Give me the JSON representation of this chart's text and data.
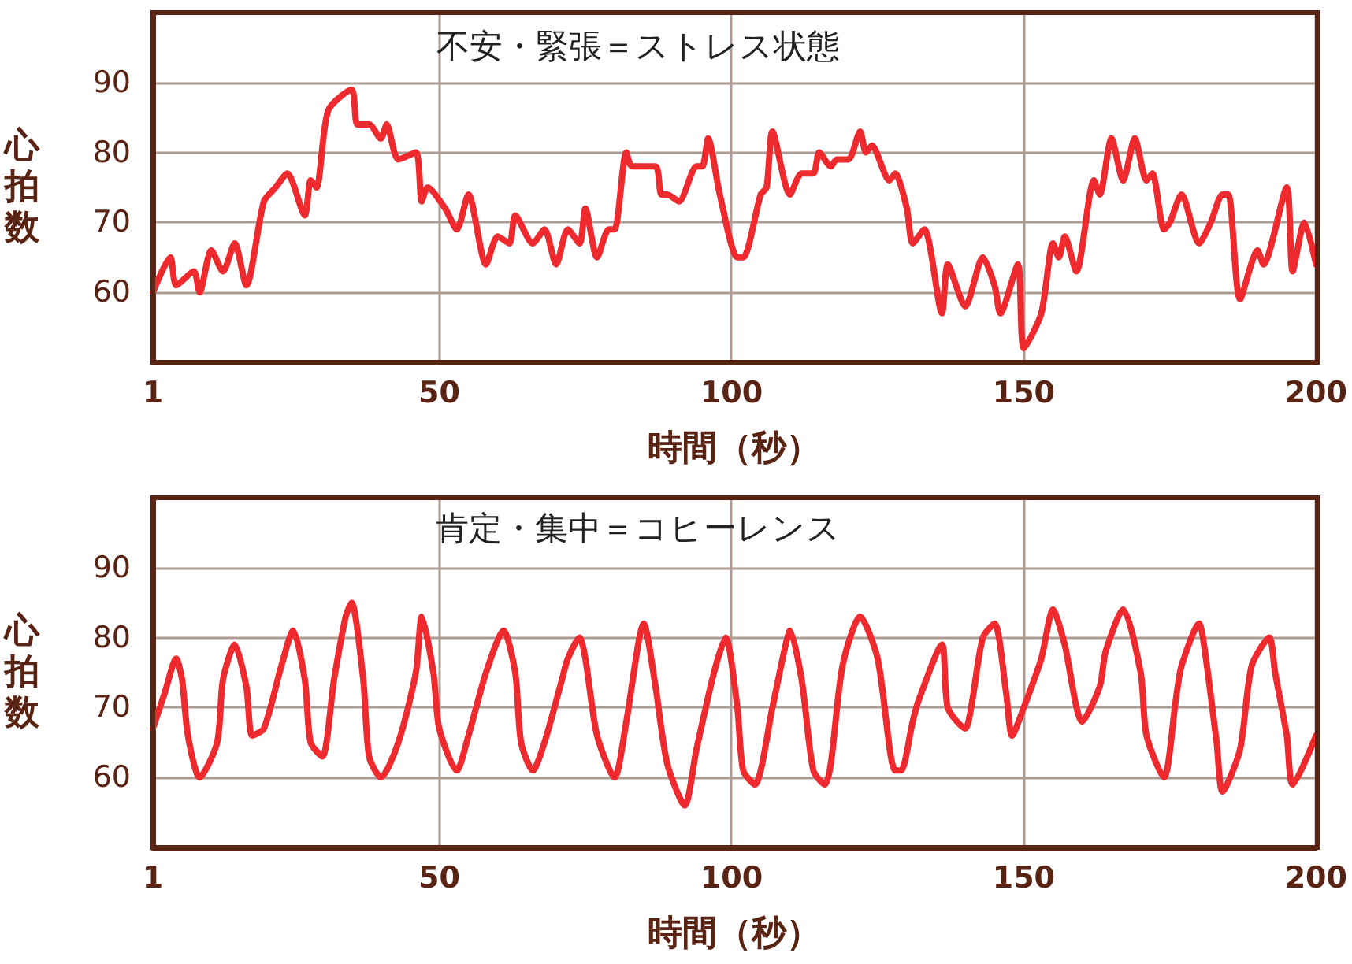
{
  "chart_data": [
    {
      "type": "line",
      "title": "不安・緊張＝ストレス状態",
      "xlabel": "時間（秒）",
      "ylabel": "心拍数",
      "xlim": [
        1,
        200
      ],
      "xticks": [
        1,
        50,
        100,
        150,
        200
      ],
      "ylim": [
        50,
        100
      ],
      "yticks": [
        60,
        70,
        80,
        90
      ],
      "grid": true,
      "x": [
        1,
        4,
        5,
        8,
        9,
        11,
        13,
        15,
        17,
        20,
        22,
        24,
        27,
        28,
        29,
        31,
        35,
        36,
        38,
        40,
        41,
        43,
        46,
        47,
        48,
        51,
        53,
        55,
        58,
        60,
        62,
        63,
        66,
        68,
        70,
        72,
        74,
        75,
        77,
        79,
        80,
        82,
        83,
        87,
        88,
        89,
        91,
        94,
        95,
        96,
        98,
        101,
        102,
        105,
        106,
        107,
        110,
        112,
        114,
        115,
        117,
        118,
        120,
        122,
        123,
        124,
        127,
        128,
        130,
        131,
        133,
        136,
        137,
        140,
        143,
        145,
        146,
        149,
        150,
        153,
        155,
        156,
        157,
        159,
        162,
        163,
        165,
        167,
        169,
        171,
        172,
        174,
        175,
        177,
        180,
        182,
        184,
        185,
        187,
        190,
        191,
        195,
        196,
        198,
        200
      ],
      "series": [
        {
          "color": "#ee2a2e",
          "values": [
            60,
            65,
            61,
            63,
            60,
            66,
            63,
            67,
            61,
            73,
            75,
            77,
            71,
            76,
            75,
            86,
            89,
            84,
            84,
            82,
            84,
            79,
            80,
            73,
            75,
            72,
            69,
            74,
            64,
            68,
            67,
            71,
            67,
            69,
            64,
            69,
            67,
            72,
            65,
            69,
            69,
            80,
            78,
            78,
            74,
            74,
            73,
            78,
            78,
            82,
            74,
            65,
            65,
            74,
            75,
            83,
            74,
            77,
            77,
            80,
            78,
            79,
            79,
            83,
            80,
            81,
            76,
            77,
            72,
            67,
            69,
            57,
            64,
            58,
            65,
            61,
            57,
            64,
            52,
            57,
            67,
            65,
            68,
            63,
            76,
            74,
            82,
            76,
            82,
            76,
            77,
            69,
            70,
            74,
            67,
            70,
            74,
            74,
            59,
            66,
            64,
            75,
            63,
            70,
            64
          ]
        }
      ]
    },
    {
      "type": "line",
      "title": "肯定・集中＝コヒーレンス",
      "xlabel": "時間（秒）",
      "ylabel": "心拍数",
      "xlim": [
        1,
        200
      ],
      "xticks": [
        1,
        50,
        100,
        150,
        200
      ],
      "ylim": [
        50,
        100
      ],
      "yticks": [
        60,
        70,
        80,
        90
      ],
      "grid": true,
      "x": [
        1,
        3,
        5,
        6,
        7,
        9,
        12,
        13,
        15,
        17,
        18,
        20,
        23,
        25,
        27,
        28,
        30,
        32,
        34,
        35,
        37,
        38,
        40,
        43,
        46,
        47,
        49,
        50,
        53,
        55,
        58,
        61,
        63,
        64,
        66,
        68,
        71,
        72,
        74,
        75,
        77,
        80,
        82,
        85,
        87,
        89,
        92,
        94,
        97,
        99,
        101,
        102,
        104,
        107,
        109,
        110,
        112,
        114,
        116,
        117,
        119,
        122,
        125,
        128,
        129,
        131,
        132,
        136,
        137,
        140,
        141,
        143,
        145,
        147,
        148,
        150,
        153,
        155,
        157,
        160,
        163,
        164,
        167,
        170,
        171,
        174,
        176,
        177,
        180,
        181,
        183,
        184,
        187,
        189,
        192,
        193,
        195,
        196,
        200
      ],
      "series": [
        {
          "color": "#ee2a2e",
          "values": [
            67,
            72,
            77,
            74,
            66,
            60,
            65,
            74,
            79,
            73,
            66,
            67,
            76,
            81,
            74,
            65,
            63,
            74,
            83,
            85,
            74,
            63,
            60,
            65,
            75,
            83,
            75,
            67,
            61,
            66,
            75,
            81,
            75,
            65,
            61,
            65,
            74,
            77,
            80,
            77,
            66,
            60,
            68,
            82,
            73,
            62,
            56,
            64,
            75,
            80,
            70,
            61,
            59,
            70,
            78,
            81,
            74,
            61,
            59,
            62,
            76,
            83,
            77,
            61,
            61,
            68,
            71,
            79,
            70,
            67,
            70,
            80,
            82,
            72,
            66,
            70,
            77,
            84,
            79,
            68,
            73,
            78,
            84,
            75,
            66,
            60,
            71,
            76,
            82,
            78,
            65,
            58,
            64,
            76,
            80,
            75,
            66,
            59,
            66
          ]
        }
      ]
    }
  ]
}
